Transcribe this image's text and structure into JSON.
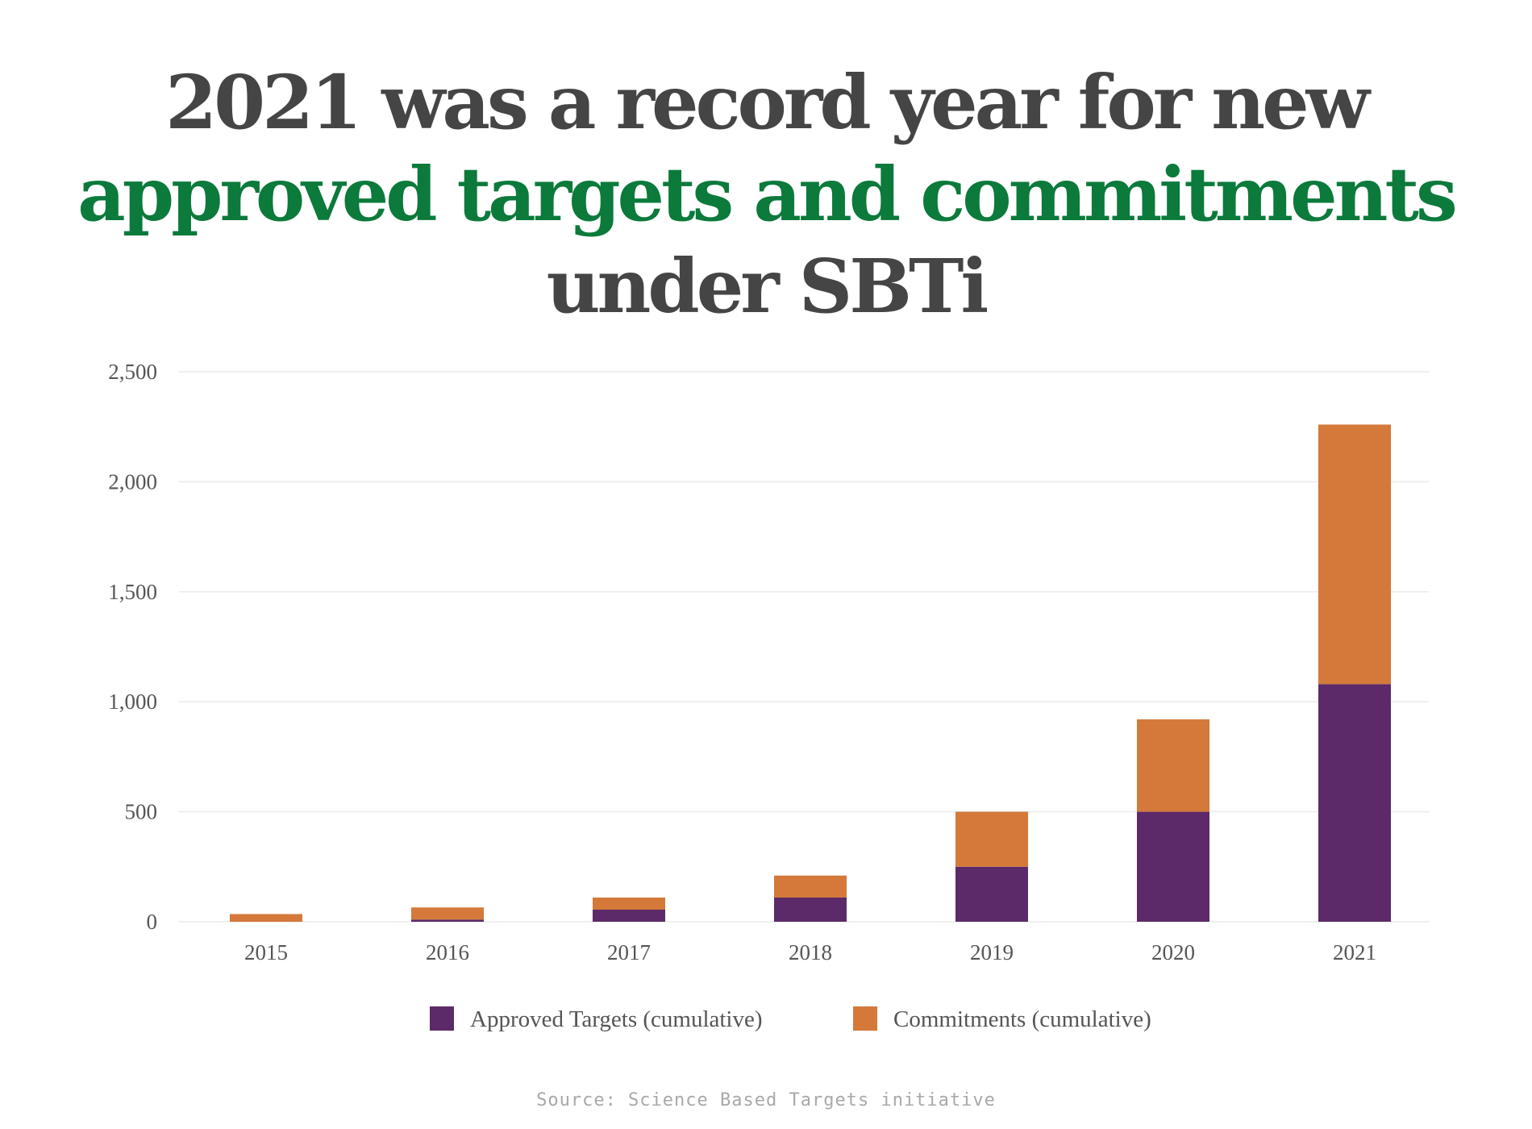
{
  "title": {
    "line1": "2021 was a record year for new",
    "line2_highlight": "approved targets and commitments",
    "line2_rest": " under SBTi",
    "color_text": "#454545",
    "color_highlight": "#0b7a3b"
  },
  "source": "Source: Science Based Targets initiative",
  "chart_data": {
    "type": "bar",
    "stacked": true,
    "categories": [
      "2015",
      "2016",
      "2017",
      "2018",
      "2019",
      "2020",
      "2021"
    ],
    "series": [
      {
        "name": "Approved Targets (cumulative)",
        "color": "#5c2a68",
        "values": [
          0,
          10,
          55,
          110,
          250,
          500,
          1080
        ]
      },
      {
        "name": "Commitments (cumulative)",
        "color": "#d4793a",
        "values": [
          35,
          55,
          55,
          100,
          250,
          420,
          1180
        ]
      }
    ],
    "yticks": [
      "0",
      "500",
      "1,000",
      "1,500",
      "2,000",
      "2,500"
    ],
    "ylim": [
      0,
      2500
    ],
    "grid": true,
    "legend_position": "bottom-center"
  }
}
